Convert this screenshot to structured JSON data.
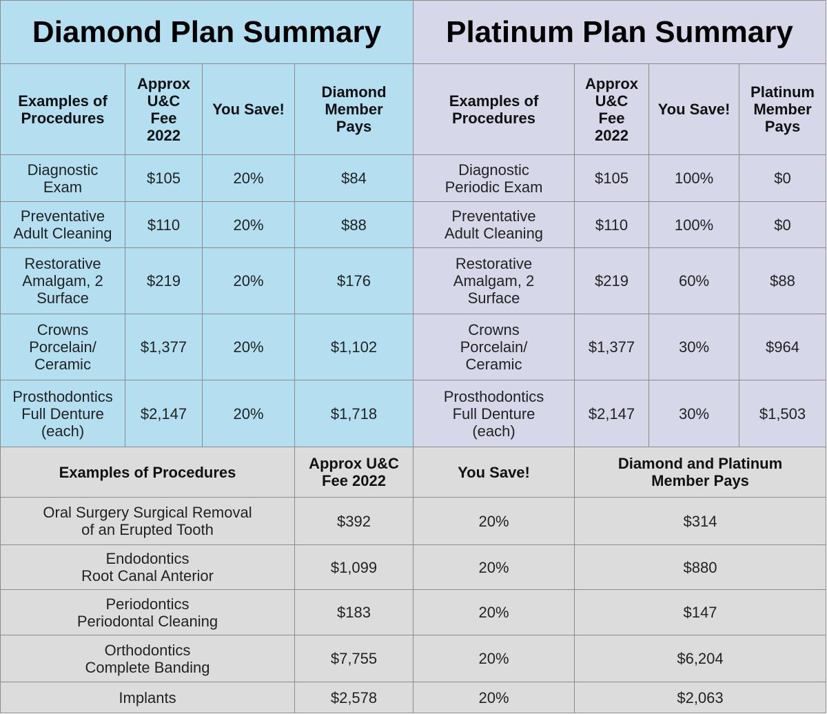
{
  "diamond": {
    "title": "Diamond Plan Summary",
    "headers": [
      "Examples of\nProcedures",
      "Approx\nU&C\nFee\n2022",
      "You Save!",
      "Diamond\nMember\nPays"
    ],
    "rows": [
      [
        "Diagnostic\nExam",
        "$105",
        "20%",
        "$84"
      ],
      [
        "Preventative\nAdult Cleaning",
        "$110",
        "20%",
        "$88"
      ],
      [
        "Restorative\nAmalgam, 2\nSurface",
        "$219",
        "20%",
        "$176"
      ],
      [
        "Crowns\nPorcelain/\nCeramic",
        "$1,377",
        "20%",
        "$1,102"
      ],
      [
        "Prosthodontics\nFull Denture\n(each)",
        "$2,147",
        "20%",
        "$1,718"
      ]
    ]
  },
  "platinum": {
    "title": "Platinum Plan Summary",
    "headers": [
      "Examples of\nProcedures",
      "Approx\nU&C\nFee\n2022",
      "You Save!",
      "Platinum\nMember\nPays"
    ],
    "rows": [
      [
        "Diagnostic\nPeriodic Exam",
        "$105",
        "100%",
        "$0"
      ],
      [
        "Preventative\nAdult Cleaning",
        "$110",
        "100%",
        "$0"
      ],
      [
        "Restorative\nAmalgam, 2\nSurface",
        "$219",
        "60%",
        "$88"
      ],
      [
        "Crowns\nPorcelain/\nCeramic",
        "$1,377",
        "30%",
        "$964"
      ],
      [
        "Prosthodontics\nFull Denture\n(each)",
        "$2,147",
        "30%",
        "$1,503"
      ]
    ]
  },
  "shared": {
    "headers": [
      "Examples of Procedures",
      "Approx U&C\nFee 2022",
      "You Save!",
      "Diamond and Platinum\nMember Pays"
    ],
    "rows": [
      [
        "Oral Surgery Surgical Removal\nof an Erupted Tooth",
        "$392",
        "20%",
        "$314"
      ],
      [
        "Endodontics\nRoot Canal Anterior",
        "$1,099",
        "20%",
        "$880"
      ],
      [
        "Periodontics\nPeriodontal Cleaning",
        "$183",
        "20%",
        "$147"
      ],
      [
        "Orthodontics\nComplete Banding",
        "$7,755",
        "20%",
        "$6,204"
      ],
      [
        "Implants",
        "$2,578",
        "20%",
        "$2,063"
      ]
    ]
  }
}
